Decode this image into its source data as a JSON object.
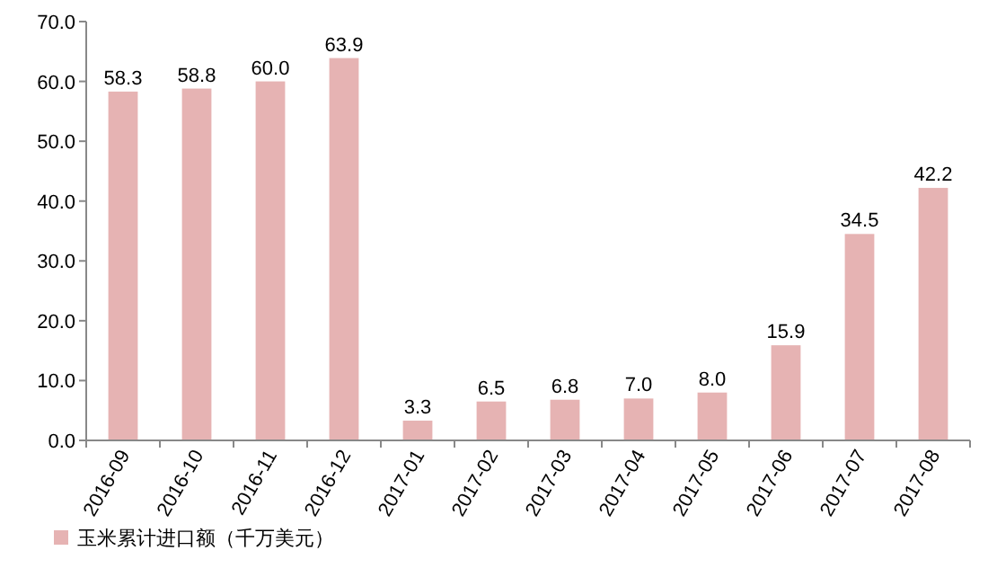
{
  "chart_data": {
    "type": "bar",
    "categories": [
      "2016-09",
      "2016-10",
      "2016-11",
      "2016-12",
      "2017-01",
      "2017-02",
      "2017-03",
      "2017-04",
      "2017-05",
      "2017-06",
      "2017-07",
      "2017-08"
    ],
    "series": [
      {
        "name": "玉米累计进口额（千万美元）",
        "color": "#e6b3b3",
        "values": [
          58.3,
          58.8,
          60.0,
          63.9,
          3.3,
          6.5,
          6.8,
          7.0,
          8.0,
          15.9,
          34.5,
          42.2
        ],
        "value_labels": [
          "58.3",
          "58.8",
          "60.0",
          "63.9",
          "3.3",
          "6.5",
          "6.8",
          "7.0",
          "8.0",
          "15.9",
          "34.5",
          "42.2"
        ]
      }
    ],
    "ylim": [
      0,
      70
    ],
    "yticks": [
      {
        "value": 0,
        "label": "0.0"
      },
      {
        "value": 10,
        "label": "10.0"
      },
      {
        "value": 20,
        "label": "20.0"
      },
      {
        "value": 30,
        "label": "30.0"
      },
      {
        "value": 40,
        "label": "40.0"
      },
      {
        "value": 50,
        "label": "50.0"
      },
      {
        "value": 60,
        "label": "60.0"
      },
      {
        "value": 70,
        "label": "70.0"
      }
    ],
    "grid": false,
    "legend": "bottom left"
  }
}
